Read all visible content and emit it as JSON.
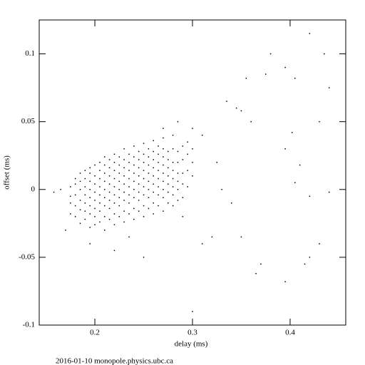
{
  "chart_data": {
    "type": "scatter",
    "x_label": "delay (ms)",
    "y_label": "offset (ms)",
    "footer": "2016-01-10  monopole.physics.ubc.ca",
    "color": "#000000",
    "xlim": [
      0.143,
      0.457
    ],
    "ylim": [
      -0.1,
      0.125
    ],
    "xticks": [
      0.2,
      0.3,
      0.4
    ],
    "yticks": [
      -0.1,
      -0.05,
      0,
      0.05,
      0.1
    ],
    "x": [
      0.175,
      0.175,
      0.175,
      0.175,
      0.18,
      0.18,
      0.18,
      0.18,
      0.18,
      0.185,
      0.185,
      0.185,
      0.185,
      0.185,
      0.185,
      0.19,
      0.19,
      0.19,
      0.19,
      0.19,
      0.19,
      0.19,
      0.195,
      0.195,
      0.195,
      0.195,
      0.195,
      0.195,
      0.195,
      0.195,
      0.2,
      0.2,
      0.2,
      0.2,
      0.2,
      0.2,
      0.2,
      0.2,
      0.205,
      0.205,
      0.205,
      0.205,
      0.205,
      0.205,
      0.205,
      0.205,
      0.21,
      0.21,
      0.21,
      0.21,
      0.21,
      0.21,
      0.21,
      0.21,
      0.21,
      0.215,
      0.215,
      0.215,
      0.215,
      0.215,
      0.215,
      0.215,
      0.215,
      0.22,
      0.22,
      0.22,
      0.22,
      0.22,
      0.22,
      0.22,
      0.22,
      0.22,
      0.225,
      0.225,
      0.225,
      0.225,
      0.225,
      0.225,
      0.225,
      0.225,
      0.23,
      0.23,
      0.23,
      0.23,
      0.23,
      0.23,
      0.23,
      0.23,
      0.23,
      0.235,
      0.235,
      0.235,
      0.235,
      0.235,
      0.235,
      0.235,
      0.235,
      0.24,
      0.24,
      0.24,
      0.24,
      0.24,
      0.24,
      0.24,
      0.24,
      0.24,
      0.245,
      0.245,
      0.245,
      0.245,
      0.245,
      0.245,
      0.245,
      0.245,
      0.25,
      0.25,
      0.25,
      0.25,
      0.25,
      0.25,
      0.25,
      0.25,
      0.25,
      0.255,
      0.255,
      0.255,
      0.255,
      0.255,
      0.255,
      0.255,
      0.255,
      0.26,
      0.26,
      0.26,
      0.26,
      0.26,
      0.26,
      0.26,
      0.26,
      0.26,
      0.265,
      0.265,
      0.265,
      0.265,
      0.265,
      0.265,
      0.265,
      0.265,
      0.27,
      0.27,
      0.27,
      0.27,
      0.27,
      0.27,
      0.27,
      0.27,
      0.27,
      0.275,
      0.275,
      0.275,
      0.275,
      0.275,
      0.275,
      0.275,
      0.28,
      0.28,
      0.28,
      0.28,
      0.28,
      0.28,
      0.28,
      0.28,
      0.285,
      0.285,
      0.285,
      0.285,
      0.285,
      0.285,
      0.29,
      0.29,
      0.29,
      0.29,
      0.29,
      0.295,
      0.295,
      0.295,
      0.3,
      0.3,
      0.3,
      0.42,
      0.435,
      0.44,
      0.38,
      0.395,
      0.375,
      0.355,
      0.405,
      0.43,
      0.402,
      0.395,
      0.41,
      0.405,
      0.42,
      0.44,
      0.42,
      0.415,
      0.43,
      0.37,
      0.365,
      0.395,
      0.35,
      0.3,
      0.345,
      0.35,
      0.335,
      0.36,
      0.325,
      0.33,
      0.34,
      0.32,
      0.31,
      0.29,
      0.165,
      0.158,
      0.17,
      0.22,
      0.25,
      0.195,
      0.235,
      0.3,
      0.31,
      0.285,
      0.27,
      0.295
    ],
    "values": [
      -0.01,
      -0.005,
      0.002,
      -0.018,
      -0.02,
      -0.012,
      -0.004,
      0.004,
      0.008,
      -0.025,
      -0.015,
      -0.008,
      0,
      0.006,
      0.012,
      -0.022,
      -0.016,
      -0.01,
      -0.004,
      0.002,
      0.008,
      0.014,
      -0.028,
      -0.018,
      -0.012,
      -0.006,
      0,
      0.006,
      0.012,
      0.016,
      -0.026,
      -0.02,
      -0.014,
      -0.008,
      -0.002,
      0.004,
      0.01,
      0.018,
      -0.024,
      -0.016,
      -0.01,
      -0.004,
      0.002,
      0.008,
      0.014,
      0.02,
      -0.03,
      -0.02,
      -0.012,
      -0.006,
      0,
      0.006,
      0.012,
      0.018,
      0.024,
      -0.022,
      -0.014,
      -0.008,
      -0.002,
      0.004,
      0.01,
      0.016,
      0.022,
      -0.026,
      -0.018,
      -0.01,
      -0.004,
      0.002,
      0.008,
      0.014,
      0.02,
      0.026,
      -0.02,
      -0.012,
      -0.006,
      0,
      0.006,
      0.012,
      0.018,
      0.024,
      -0.024,
      -0.016,
      -0.008,
      -0.002,
      0.004,
      0.01,
      0.016,
      0.022,
      0.03,
      -0.018,
      -0.01,
      -0.004,
      0.002,
      0.008,
      0.014,
      0.02,
      0.026,
      -0.022,
      -0.014,
      -0.006,
      0,
      0.006,
      0.012,
      0.018,
      0.024,
      0.032,
      -0.016,
      -0.008,
      -0.002,
      0.004,
      0.01,
      0.016,
      0.022,
      0.028,
      -0.02,
      -0.012,
      -0.004,
      0.002,
      0.008,
      0.014,
      0.02,
      0.026,
      0.034,
      -0.014,
      -0.006,
      0,
      0.006,
      0.012,
      0.018,
      0.024,
      0.03,
      -0.018,
      -0.01,
      -0.002,
      0.004,
      0.01,
      0.016,
      0.022,
      0.028,
      0.036,
      -0.012,
      -0.004,
      0.002,
      0.008,
      0.014,
      0.02,
      0.026,
      0.032,
      -0.016,
      -0.006,
      0,
      0.006,
      0.012,
      0.018,
      0.024,
      0.03,
      0.038,
      -0.01,
      -0.002,
      0.004,
      0.01,
      0.016,
      0.022,
      0.028,
      -0.012,
      -0.004,
      0.002,
      0.008,
      0.014,
      0.02,
      0.03,
      0.04,
      -0.008,
      0,
      0.006,
      0.012,
      0.02,
      0.028,
      -0.006,
      0.004,
      0.012,
      0.022,
      0.032,
      0.002,
      0.014,
      0.026,
      0.01,
      0.02,
      0.03,
      0.115,
      0.1,
      0.075,
      0.1,
      0.09,
      0.085,
      0.082,
      0.082,
      0.05,
      0.042,
      0.03,
      0.018,
      0.005,
      -0.005,
      -0.002,
      -0.05,
      -0.055,
      -0.04,
      -0.055,
      -0.062,
      -0.068,
      -0.035,
      -0.09,
      0.06,
      0.058,
      0.065,
      0.05,
      0.02,
      0,
      -0.01,
      -0.035,
      -0.04,
      -0.02,
      0,
      -0.002,
      -0.03,
      -0.045,
      -0.05,
      -0.04,
      -0.035,
      0.045,
      0.04,
      0.05,
      0.045,
      0.035
    ]
  }
}
